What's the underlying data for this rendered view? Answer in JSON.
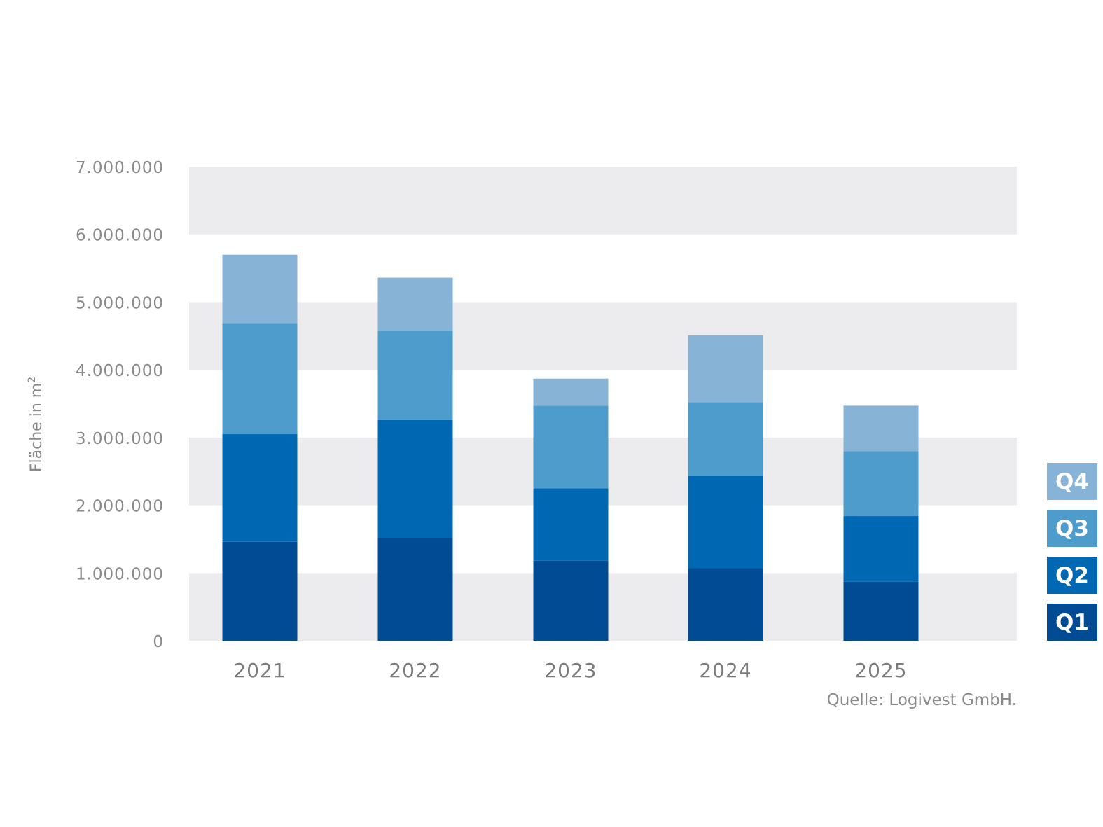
{
  "chart_data": {
    "type": "bar",
    "stacked": true,
    "categories": [
      "2021",
      "2022",
      "2023",
      "2024",
      "2025"
    ],
    "series": [
      {
        "name": "Q1",
        "color": "#004b93",
        "values": [
          1460000,
          1520000,
          1180000,
          1070000,
          870000
        ]
      },
      {
        "name": "Q2",
        "color": "#0068b3",
        "values": [
          1590000,
          1740000,
          1070000,
          1360000,
          970000
        ]
      },
      {
        "name": "Q3",
        "color": "#4d9ccb",
        "values": [
          1640000,
          1320000,
          1220000,
          1090000,
          960000
        ]
      },
      {
        "name": "Q4",
        "color": "#87b3d6",
        "values": [
          1010000,
          780000,
          400000,
          990000,
          670000
        ]
      }
    ],
    "ylim": [
      0,
      7000000
    ],
    "yticks": [
      "0",
      "1.000.000",
      "2.000.000",
      "3.000.000",
      "4.000.000",
      "5.000.000",
      "6.000.000",
      "7.000.000"
    ],
    "ylabel": "Fläche in m",
    "ylabel_sup": "2",
    "xlabel": "",
    "title": "",
    "legend_placement": "right",
    "grid": "alternating horizontal bands",
    "band_color": "#ececee",
    "source": "Quelle: Logivest GmbH."
  }
}
